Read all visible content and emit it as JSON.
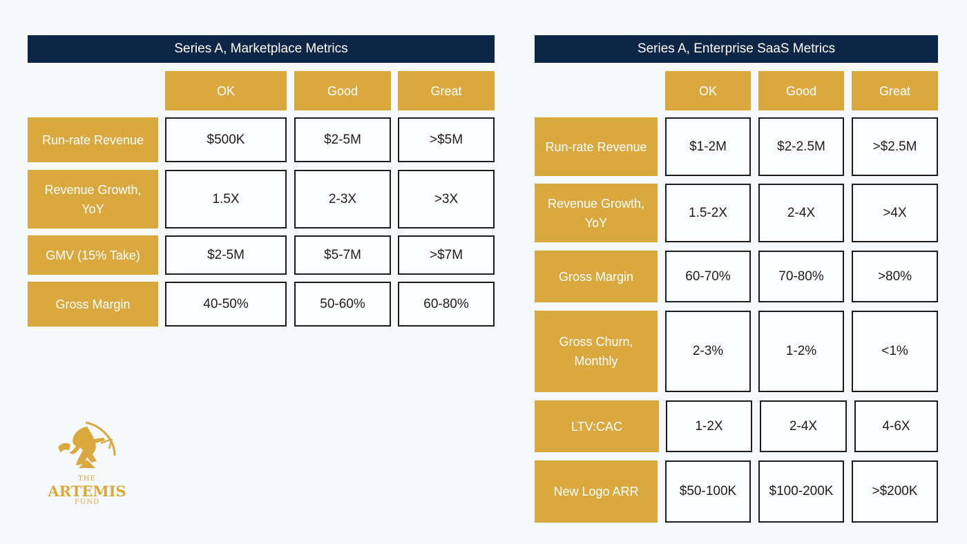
{
  "left_table": {
    "title": "Series A, Marketplace Metrics",
    "columns": [
      "OK",
      "Good",
      "Great"
    ],
    "rows": [
      {
        "label": "Run-rate Revenue",
        "values": [
          "$500K",
          "$2-5M",
          ">$5M"
        ]
      },
      {
        "label": "Revenue Growth, YoY",
        "values": [
          "1.5X",
          "2-3X",
          ">3X"
        ]
      },
      {
        "label": "GMV (15% Take)",
        "values": [
          "$2-5M",
          "$5-7M",
          ">$7M"
        ]
      },
      {
        "label": "Gross Margin",
        "values": [
          "40-50%",
          "50-60%",
          "60-80%"
        ]
      }
    ]
  },
  "right_table": {
    "title": "Series A, Enterprise SaaS Metrics",
    "columns": [
      "OK",
      "Good",
      "Great"
    ],
    "rows": [
      {
        "label": "Run-rate Revenue",
        "values": [
          "$1-2M",
          "$2-2.5M",
          ">$2.5M"
        ]
      },
      {
        "label": "Revenue Growth, YoY",
        "values": [
          "1.5-2X",
          "2-4X",
          ">4X"
        ]
      },
      {
        "label": "Gross Margin",
        "values": [
          "60-70%",
          "70-80%",
          ">80%"
        ]
      },
      {
        "label": "Gross Churn, Monthly",
        "values": [
          "2-3%",
          "1-2%",
          "<1%"
        ]
      },
      {
        "label": "LTV:CAC",
        "values": [
          "1-2X",
          "2-4X",
          "4-6X"
        ]
      },
      {
        "label": "New Logo ARR",
        "values": [
          "$50-100K",
          "$100-200K",
          ">$200K"
        ]
      }
    ]
  },
  "logo": {
    "line1": "THE",
    "line2": "ARTEMIS",
    "line3": "FUND"
  },
  "colors": {
    "navy": "#0d2646",
    "gold": "#d9a83f",
    "background": "#f5f9fc"
  }
}
